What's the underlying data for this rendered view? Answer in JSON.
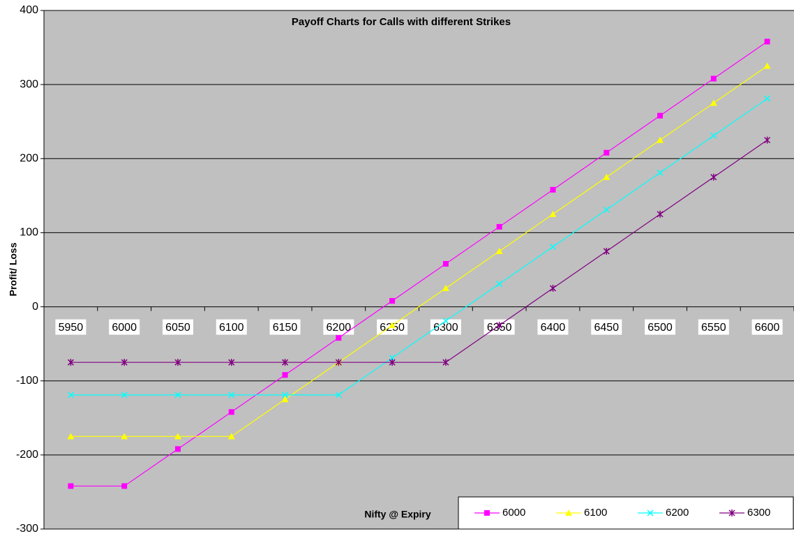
{
  "chart_data": {
    "type": "line",
    "title": "Payoff Charts for Calls with different Strikes",
    "x_label": "Nifty @ Expiry",
    "y_label": "Profit/ Loss",
    "categories": [
      "5950",
      "6000",
      "6050",
      "6100",
      "6150",
      "6200",
      "6250",
      "6300",
      "6350",
      "6400",
      "6450",
      "6500",
      "6550",
      "6600"
    ],
    "series": [
      {
        "name": "6000",
        "color": "#ff00ff",
        "marker": "square",
        "values": [
          -242,
          -242,
          -192,
          -142,
          -92,
          -42,
          8,
          58,
          108,
          158,
          208,
          258,
          308,
          358
        ]
      },
      {
        "name": "6100",
        "color": "#ffff00",
        "marker": "triangle",
        "values": [
          -175,
          -175,
          -175,
          -175,
          -125,
          -75,
          -25,
          25,
          75,
          125,
          175,
          225,
          275,
          325
        ]
      },
      {
        "name": "6200",
        "color": "#00ffff",
        "marker": "x",
        "values": [
          -119,
          -119,
          -119,
          -119,
          -119,
          -119,
          -69,
          -19,
          31,
          81,
          131,
          181,
          231,
          281
        ]
      },
      {
        "name": "6300",
        "color": "#800080",
        "marker": "star",
        "values": [
          -75,
          -75,
          -75,
          -75,
          -75,
          -75,
          -75,
          -75,
          -25,
          25,
          75,
          125,
          175,
          225
        ]
      }
    ],
    "ylim": [
      -300,
      400
    ],
    "yticks": [
      -300,
      -200,
      -100,
      0,
      100,
      200,
      300,
      400
    ],
    "grid": true,
    "legend": "lower right"
  }
}
